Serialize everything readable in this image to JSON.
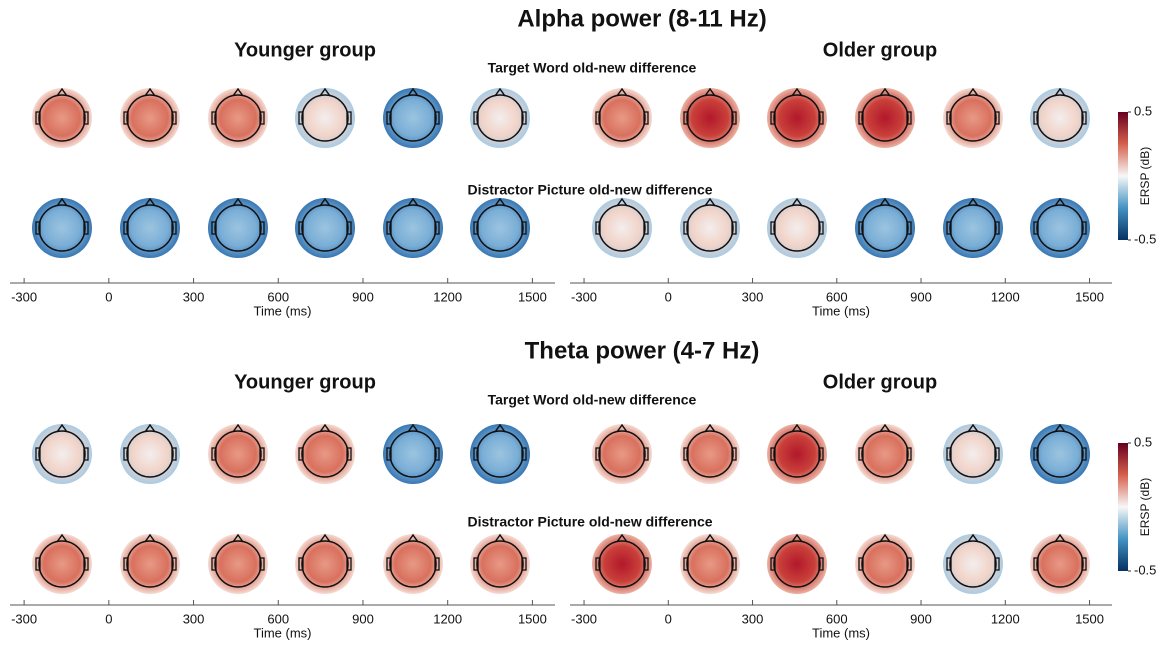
{
  "panels": [
    {
      "title": "Alpha power (8-11 Hz)",
      "groups": [
        {
          "title": "Younger group"
        },
        {
          "title": "Older group"
        }
      ],
      "rows": [
        "Target Word old-new difference",
        "Distractor Picture old-new difference"
      ],
      "xlabel": "Time (ms)",
      "xlim": [
        -350,
        1580
      ],
      "xticks": [
        -300,
        0,
        300,
        600,
        900,
        1200,
        1500
      ],
      "colorbar": {
        "label": "ERSP (dB)",
        "clim": [
          -0.5,
          0.5
        ],
        "ticks": [
          0.5,
          -0.5
        ]
      }
    },
    {
      "title": "Theta power (4-7 Hz)",
      "groups": [
        {
          "title": "Younger group"
        },
        {
          "title": "Older group"
        }
      ],
      "rows": [
        "Target Word old-new difference",
        "Distractor Picture old-new difference"
      ],
      "xlabel": "Time (ms)",
      "xlim": [
        -350,
        1580
      ],
      "xticks": [
        -300,
        0,
        300,
        600,
        900,
        1200,
        1500
      ],
      "colorbar": {
        "label": "ERSP (dB)",
        "clim": [
          -0.5,
          0.5
        ],
        "ticks": [
          0.5,
          -0.5
        ]
      }
    }
  ]
}
